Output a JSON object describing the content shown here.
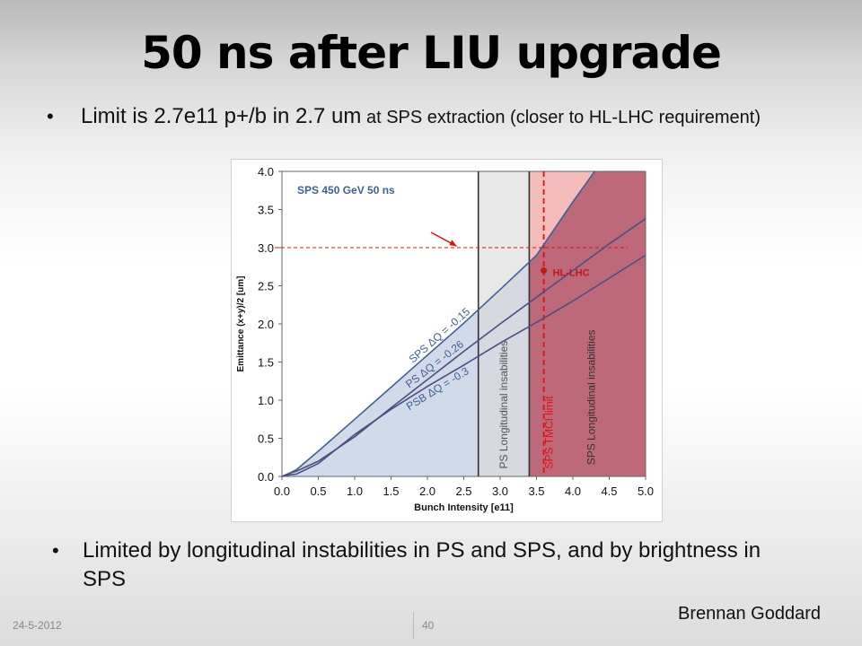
{
  "slide": {
    "title": "50 ns after LIU upgrade",
    "bullet1_main": "Limit is 2.7e11 p+/b in 2.7 um",
    "bullet1_rest": " at SPS extraction (closer to HL-LHC requirement)",
    "bullet2": "Limited by longitudinal instabilities in PS and SPS, and by brightness in SPS",
    "author": "Brennan Goddard",
    "date": "24-5-2012",
    "page": "40",
    "bullet_symbol": "•"
  },
  "chart_data": {
    "type": "line",
    "title": "SPS 450  GeV 50 ns",
    "xlabel": "Bunch Intensity [e11]",
    "ylabel": "Emittance (x+y)/2 [um]",
    "xlim": [
      0,
      5
    ],
    "ylim": [
      0,
      4
    ],
    "xticks": [
      "0.0",
      "0.5",
      "1.0",
      "1.5",
      "2.0",
      "2.5",
      "3.0",
      "3.5",
      "4.0",
      "4.5",
      "5.0"
    ],
    "yticks": [
      "0.0",
      "0.5",
      "1.0",
      "1.5",
      "2.0",
      "2.5",
      "3.0",
      "3.5",
      "4.0"
    ],
    "grid": false,
    "series": [
      {
        "name": "SPS ΔQ = -0.15",
        "x": [
          0,
          0.1,
          0.2,
          0.5,
          1.0,
          1.5,
          2.0,
          2.5,
          3.0,
          3.5,
          4.0,
          4.3
        ],
        "y": [
          0,
          0.04,
          0.09,
          0.33,
          0.75,
          1.17,
          1.59,
          2.01,
          2.45,
          2.9,
          3.6,
          4.0
        ]
      },
      {
        "name": "PS ΔQ = -0.26",
        "x": [
          0,
          0.1,
          0.2,
          0.5,
          1.0,
          1.5,
          2.0,
          2.5,
          3.0,
          3.5,
          4.0,
          4.5,
          5.0
        ],
        "y": [
          0,
          0.04,
          0.07,
          0.2,
          0.52,
          0.9,
          1.27,
          1.64,
          2.0,
          2.35,
          2.7,
          3.05,
          3.38
        ]
      },
      {
        "name": "PSB ΔQ = -0.3",
        "x": [
          0,
          0.1,
          0.2,
          0.5,
          1.0,
          1.5,
          2.0,
          2.5,
          3.0,
          3.5,
          4.0,
          4.5,
          5.0
        ],
        "y": [
          0,
          0.02,
          0.03,
          0.17,
          0.55,
          0.88,
          1.18,
          1.46,
          1.75,
          2.02,
          2.3,
          2.6,
          2.9
        ]
      }
    ],
    "annotations": {
      "ps_long_label": "PS Longitudinal insabilities",
      "sps_tmci_label": "SPS TMCI limit",
      "sps_long_label": "SPS Longitudinal insabilities",
      "hl_lhc_label": "HL-LHC",
      "hl_lhc_point": {
        "x": 3.6,
        "y": 2.7
      },
      "ps_long_limit_x": 2.7,
      "sps_long_limit_x": 3.4,
      "sps_tmci_x": 3.6,
      "target_emittance": 3.0
    },
    "colors": {
      "line": "#3f5f9a",
      "allowed_fill": "#c9d3e4",
      "ps_band": "#d9d9d9",
      "tmci_band": "#f2a6a6",
      "sps_band": "#b45a6e",
      "limit_red": "#e01010",
      "limit_line": "#333333"
    }
  }
}
